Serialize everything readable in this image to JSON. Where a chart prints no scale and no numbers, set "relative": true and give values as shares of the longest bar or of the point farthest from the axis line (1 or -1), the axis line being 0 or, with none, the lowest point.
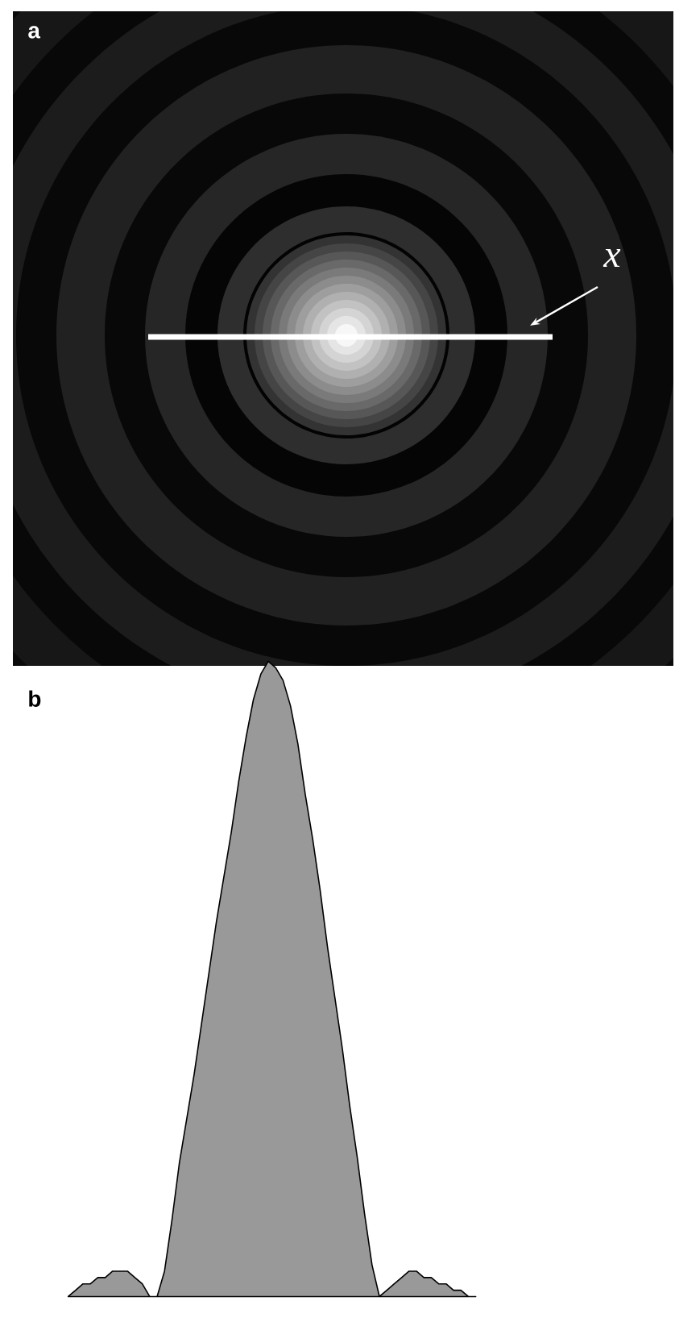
{
  "chart_data": [
    {
      "type": "other",
      "title": "a",
      "annotations": [
        "x"
      ]
    },
    {
      "type": "area",
      "title": "b",
      "relative": true,
      "color": "#999999",
      "categories": [
        null,
        null,
        null,
        null,
        null,
        null,
        null,
        null,
        null,
        null,
        null,
        null,
        null,
        null,
        null,
        null,
        null,
        null,
        null,
        null,
        null,
        null,
        null,
        null,
        null,
        null,
        null,
        null,
        null,
        null,
        null,
        null,
        null,
        null,
        null,
        null,
        null,
        null,
        null,
        null,
        null,
        null,
        null,
        null,
        null,
        null,
        null,
        null,
        null,
        null,
        null,
        null,
        null,
        null,
        null,
        null
      ],
      "values": [
        0,
        0.01,
        0.02,
        0.02,
        0.03,
        0.03,
        0.04,
        0.04,
        0.04,
        0.03,
        0.02,
        0,
        0,
        0.04,
        0.12,
        0.21,
        0.28,
        0.35,
        0.43,
        0.51,
        0.59,
        0.66,
        0.73,
        0.81,
        0.88,
        0.94,
        0.98,
        1,
        0.99,
        0.97,
        0.93,
        0.87,
        0.79,
        0.72,
        0.64,
        0.55,
        0.47,
        0.39,
        0.3,
        0.22,
        0.13,
        0.05,
        0,
        0.01,
        0.02,
        0.03,
        0.04,
        0.04,
        0.03,
        0.03,
        0.02,
        0.02,
        0.01,
        0.01,
        0,
        0
      ]
    }
  ]
}
